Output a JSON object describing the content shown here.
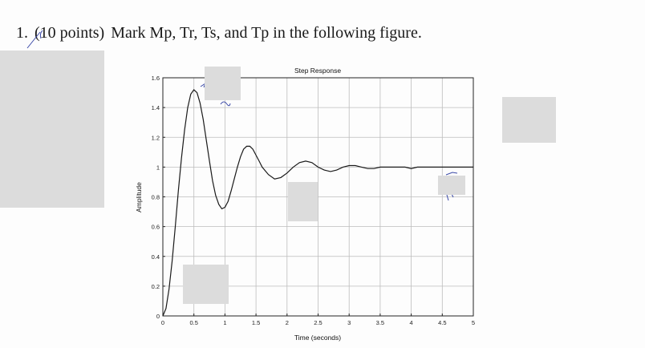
{
  "question": {
    "number": "1.",
    "points": "(10 points)",
    "text": "Mark Mp, Tr, Ts, and Tp in the following figure."
  },
  "colors": {
    "redaction": "#dcdcdc",
    "line": "#1a1a1a",
    "grid": "#bdbdbd",
    "pen": "#3b4aa8"
  },
  "chart_data": {
    "type": "line",
    "title": "Step Response",
    "xlabel": "Time (seconds)",
    "ylabel": "Amplitude",
    "xlim": [
      0,
      5
    ],
    "ylim": [
      0,
      1.6
    ],
    "xticks": [
      "0",
      "0.5",
      "1",
      "1.5",
      "2",
      "2.5",
      "3",
      "3.5",
      "4",
      "4.5",
      "5"
    ],
    "yticks": [
      "0",
      "0.2",
      "0.4",
      "0.6",
      "0.8",
      "1",
      "1.2",
      "1.4",
      "1.6"
    ],
    "grid": true,
    "series": [
      {
        "x": [
          0,
          0.05,
          0.1,
          0.15,
          0.2,
          0.25,
          0.3,
          0.35,
          0.4,
          0.45,
          0.5,
          0.55,
          0.6,
          0.65,
          0.7,
          0.75,
          0.8,
          0.85,
          0.9,
          0.95,
          1.0,
          1.05,
          1.1,
          1.15,
          1.2,
          1.25,
          1.3,
          1.35,
          1.4,
          1.45,
          1.5,
          1.55,
          1.6,
          1.7,
          1.8,
          1.9,
          2.0,
          2.1,
          2.2,
          2.3,
          2.4,
          2.5,
          2.6,
          2.7,
          2.8,
          2.9,
          3.0,
          3.1,
          3.2,
          3.3,
          3.4,
          3.5,
          3.6,
          3.7,
          3.8,
          3.9,
          4.0,
          4.1,
          4.2,
          4.3,
          4.4,
          4.5,
          4.6,
          4.7,
          4.8,
          4.9,
          5.0
        ],
        "y": [
          0,
          0.05,
          0.18,
          0.37,
          0.6,
          0.84,
          1.06,
          1.25,
          1.4,
          1.49,
          1.52,
          1.5,
          1.43,
          1.32,
          1.18,
          1.04,
          0.91,
          0.81,
          0.75,
          0.72,
          0.73,
          0.77,
          0.84,
          0.92,
          1.0,
          1.07,
          1.12,
          1.14,
          1.14,
          1.12,
          1.08,
          1.04,
          1.0,
          0.95,
          0.92,
          0.93,
          0.96,
          1.0,
          1.03,
          1.04,
          1.03,
          1.0,
          0.98,
          0.97,
          0.98,
          1.0,
          1.01,
          1.01,
          1.0,
          0.99,
          0.99,
          1.0,
          1.0,
          1.0,
          1.0,
          1.0,
          0.99,
          1.0,
          1.0,
          1.0,
          1.0,
          1.0,
          1.0,
          1.0,
          1.0,
          1.0,
          1.0
        ]
      }
    ]
  }
}
